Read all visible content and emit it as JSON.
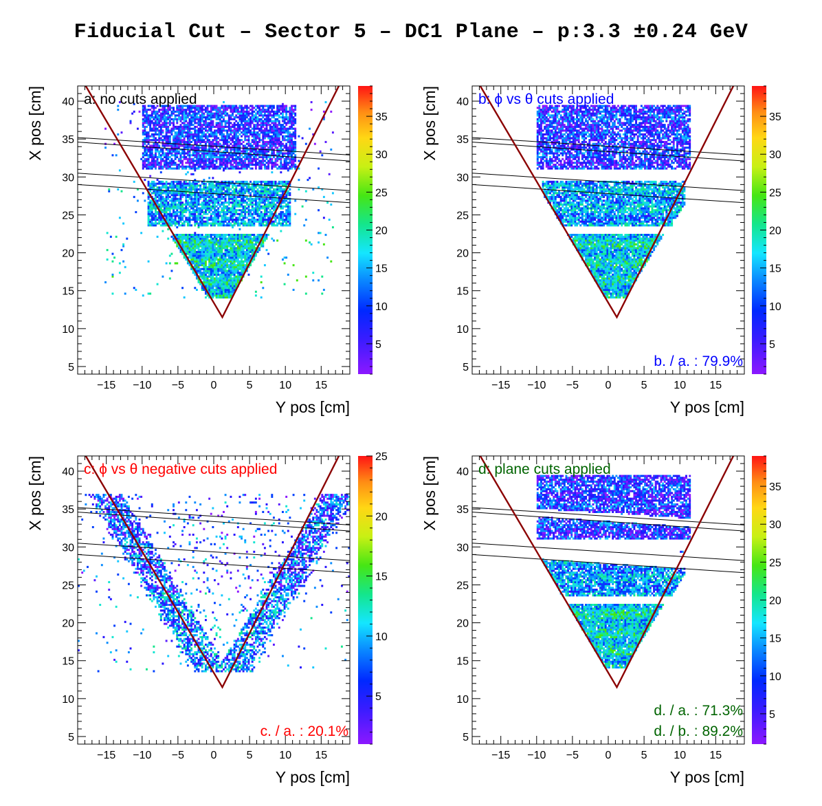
{
  "title": "Fiducial Cut – Sector 5 – DC1 Plane –  p:3.3 ±0.24 GeV",
  "colors": {
    "boundary": "#8b0000",
    "cut_lines": "#000000",
    "label_a": "#000000",
    "label_b": "#0000ff",
    "label_c": "#ff0000",
    "label_d": "#006400"
  },
  "chart_data": [
    {
      "type": "heatmap",
      "id": "a",
      "label": "a: no cuts applied",
      "xlabel": "Y pos [cm]",
      "ylabel": "X pos [cm]",
      "xlim": [
        -19,
        19
      ],
      "ylim": [
        4,
        42
      ],
      "xticks": [
        -15,
        -10,
        -5,
        0,
        5,
        10,
        15
      ],
      "yticks": [
        5,
        10,
        15,
        20,
        25,
        30,
        35,
        40
      ],
      "zlim": [
        1,
        39
      ],
      "zticks": [
        5,
        10,
        15,
        20,
        25,
        30,
        35
      ],
      "boundary": {
        "vertex": [
          1.2,
          11.5
        ],
        "left_end": [
          -18.5,
          43
        ],
        "right_end": [
          18.0,
          43
        ]
      },
      "cut_lines": [
        {
          "x": [
            -19,
            19
          ],
          "y": [
            35.2,
            32.9
          ]
        },
        {
          "x": [
            -19,
            19
          ],
          "y": [
            34.6,
            32.1
          ]
        },
        {
          "x": [
            -19,
            19
          ],
          "y": [
            30.5,
            28.2
          ]
        },
        {
          "x": [
            -19,
            19
          ],
          "y": [
            29.0,
            26.6
          ]
        }
      ],
      "ratios": []
    },
    {
      "type": "heatmap",
      "id": "b",
      "label": "b: ϕ vs θ cuts applied",
      "xlabel": "Y pos [cm]",
      "ylabel": "X pos [cm]",
      "xlim": [
        -19,
        19
      ],
      "ylim": [
        4,
        42
      ],
      "xticks": [
        -15,
        -10,
        -5,
        0,
        5,
        10,
        15
      ],
      "yticks": [
        5,
        10,
        15,
        20,
        25,
        30,
        35,
        40
      ],
      "zlim": [
        1,
        39
      ],
      "zticks": [
        5,
        10,
        15,
        20,
        25,
        30,
        35
      ],
      "boundary": {
        "vertex": [
          1.2,
          11.5
        ],
        "left_end": [
          -18.5,
          43
        ],
        "right_end": [
          18.0,
          43
        ]
      },
      "cut_lines": [
        {
          "x": [
            -19,
            19
          ],
          "y": [
            35.2,
            32.9
          ]
        },
        {
          "x": [
            -19,
            19
          ],
          "y": [
            34.6,
            32.1
          ]
        },
        {
          "x": [
            -19,
            19
          ],
          "y": [
            30.5,
            28.2
          ]
        },
        {
          "x": [
            -19,
            19
          ],
          "y": [
            29.0,
            26.6
          ]
        }
      ],
      "ratios": [
        "b. / a. : 79.9%"
      ]
    },
    {
      "type": "heatmap",
      "id": "c",
      "label": "c: ϕ vs θ negative cuts applied",
      "xlabel": "Y pos [cm]",
      "ylabel": "X pos [cm]",
      "xlim": [
        -19,
        19
      ],
      "ylim": [
        4,
        42
      ],
      "xticks": [
        -15,
        -10,
        -5,
        0,
        5,
        10,
        15
      ],
      "yticks": [
        5,
        10,
        15,
        20,
        25,
        30,
        35,
        40
      ],
      "zlim": [
        1,
        25
      ],
      "zticks": [
        5,
        10,
        15,
        20,
        25
      ],
      "boundary": {
        "vertex": [
          1.2,
          11.5
        ],
        "left_end": [
          -18.5,
          43
        ],
        "right_end": [
          18.0,
          43
        ]
      },
      "cut_lines": [
        {
          "x": [
            -19,
            19
          ],
          "y": [
            35.2,
            32.9
          ]
        },
        {
          "x": [
            -19,
            19
          ],
          "y": [
            34.6,
            32.1
          ]
        },
        {
          "x": [
            -19,
            19
          ],
          "y": [
            30.5,
            28.2
          ]
        },
        {
          "x": [
            -19,
            19
          ],
          "y": [
            29.0,
            26.6
          ]
        }
      ],
      "ratios": [
        "c. / a. : 20.1%"
      ]
    },
    {
      "type": "heatmap",
      "id": "d",
      "label": "d: plane cuts applied",
      "xlabel": "Y pos [cm]",
      "ylabel": "X pos [cm]",
      "xlim": [
        -19,
        19
      ],
      "ylim": [
        4,
        42
      ],
      "xticks": [
        -15,
        -10,
        -5,
        0,
        5,
        10,
        15
      ],
      "yticks": [
        5,
        10,
        15,
        20,
        25,
        30,
        35,
        40
      ],
      "zlim": [
        1,
        39
      ],
      "zticks": [
        5,
        10,
        15,
        20,
        25,
        30,
        35
      ],
      "boundary": {
        "vertex": [
          1.2,
          11.5
        ],
        "left_end": [
          -18.5,
          43
        ],
        "right_end": [
          18.0,
          43
        ]
      },
      "cut_lines": [
        {
          "x": [
            -19,
            19
          ],
          "y": [
            35.2,
            32.9
          ]
        },
        {
          "x": [
            -19,
            19
          ],
          "y": [
            34.6,
            32.1
          ]
        },
        {
          "x": [
            -19,
            19
          ],
          "y": [
            30.5,
            28.2
          ]
        },
        {
          "x": [
            -19,
            19
          ],
          "y": [
            29.0,
            26.6
          ]
        }
      ],
      "ratios": [
        "d. / a. : 71.3%",
        "d. / b. : 89.2%"
      ]
    }
  ]
}
